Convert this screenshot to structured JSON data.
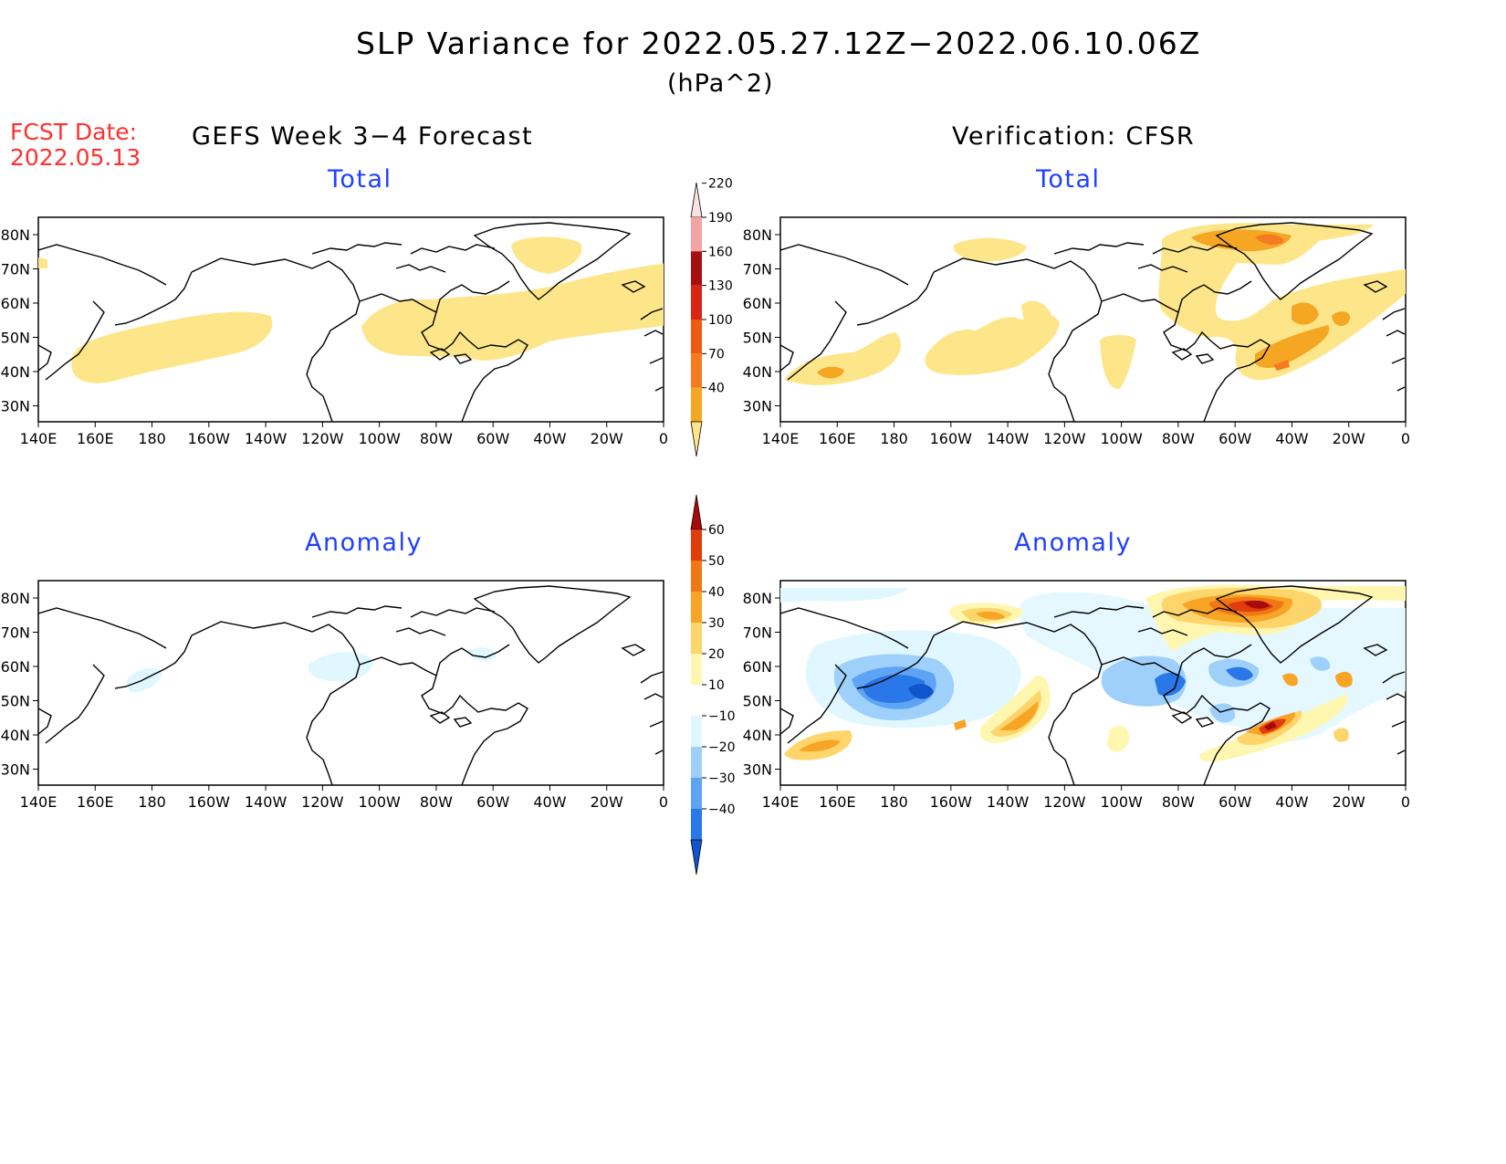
{
  "title": "SLP Variance for 2022.05.27.12Z−2022.06.10.06Z",
  "units": "(hPa^2)",
  "fcst_date": {
    "label": "FCST Date:",
    "value": "2022.05.13"
  },
  "columns": {
    "left": "GEFS Week 3−4 Forecast",
    "right": "Verification: CFSR"
  },
  "panels": {
    "fcst_total": {
      "title": "Total"
    },
    "verif_total": {
      "title": "Total"
    },
    "fcst_anom": {
      "title": "Anomaly"
    },
    "verif_anom": {
      "title": "Anomaly"
    }
  },
  "axes": {
    "lon_labels": [
      "140E",
      "160E",
      "180",
      "160W",
      "140W",
      "120W",
      "100W",
      "80W",
      "60W",
      "40W",
      "20W",
      "0"
    ],
    "lat_labels": [
      "80N",
      "70N",
      "60N",
      "50N",
      "40N",
      "30N"
    ]
  },
  "colorbars": {
    "total": {
      "levels": [
        "40",
        "70",
        "100",
        "130",
        "160",
        "190",
        "220"
      ],
      "colors": [
        "#fde68a",
        "#f5a623",
        "#f47b20",
        "#ee5a12",
        "#d92514",
        "#a50f0f",
        "#f2a3a3",
        "#fde0e3"
      ]
    },
    "anomaly": {
      "levels": [
        "−40",
        "−30",
        "−20",
        "−10",
        "10",
        "20",
        "30",
        "40",
        "50",
        "60"
      ],
      "colors": [
        "#1155cc",
        "#2a77e8",
        "#5ea4f4",
        "#9fd0fb",
        "#e0f7ff",
        "#ffffff",
        "#fff6b0",
        "#fdd56b",
        "#f8a425",
        "#f07814",
        "#e03c0c",
        "#a80a0a"
      ]
    }
  }
}
